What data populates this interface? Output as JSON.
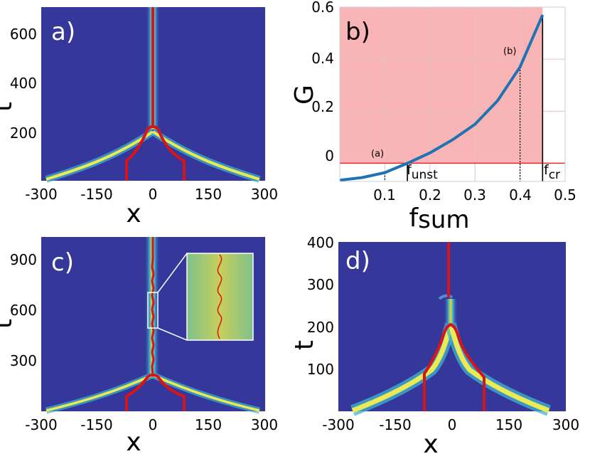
{
  "chart_data": [
    {
      "panel_label": "a)",
      "type": "heatmap",
      "xlabel": "x",
      "ylabel": "t",
      "xticks": [
        "-300",
        "-150",
        "0",
        "150",
        "300"
      ],
      "yticks": [
        "200",
        "400",
        "600"
      ],
      "xlim": [
        -300,
        300
      ],
      "ylim": [
        0,
        700
      ],
      "colors": {
        "background": "#35379a",
        "ridge": "#d7141a",
        "band": "#eaea55"
      }
    },
    {
      "panel_label": "b)",
      "type": "line",
      "xlabel": "f",
      "xlabel_sub": "sum",
      "ylabel": "G",
      "xticks": [
        "0.1",
        "0.2",
        "0.3",
        "0.4",
        "0.5"
      ],
      "yticks": [
        "0",
        "0.2",
        "0.4",
        "0.6"
      ],
      "xlim": [
        0,
        0.5
      ],
      "ylim": [
        -0.07,
        0.6
      ],
      "grid": true,
      "series": [
        {
          "color": "#1f72b4",
          "x": [
            0,
            0.05,
            0.1,
            0.15,
            0.2,
            0.25,
            0.3,
            0.35,
            0.4,
            0.45
          ],
          "values": [
            -0.065,
            -0.055,
            -0.036,
            0.0,
            0.04,
            0.09,
            0.15,
            0.24,
            0.37,
            0.57
          ]
        }
      ],
      "shaded_region": {
        "y_from": 0,
        "color": "#f9b4b6"
      },
      "zero_line_color": "#e8292e",
      "markers": [
        {
          "label": "(a)",
          "x": 0.1,
          "style": "dotted"
        },
        {
          "label": "(b)",
          "x": 0.4,
          "style": "dotted"
        },
        {
          "label": "f",
          "label_sub": "unst",
          "x": 0.15,
          "style": "solid"
        },
        {
          "label": "f",
          "label_sub": "cr",
          "x": 0.45,
          "style": "solid"
        }
      ]
    },
    {
      "panel_label": "c)",
      "type": "heatmap",
      "xlabel": "x",
      "ylabel": "t",
      "xticks": [
        "-300",
        "-150",
        "0",
        "150",
        "300"
      ],
      "yticks": [
        "300",
        "600",
        "900"
      ],
      "xlim": [
        -300,
        300
      ],
      "ylim": [
        0,
        1000
      ],
      "colors": {
        "background": "#35379a",
        "ridge": "#d7141a",
        "band": "#eaea55",
        "inset": "#a7c882"
      }
    },
    {
      "panel_label": "d)",
      "type": "heatmap",
      "xlabel": "x",
      "ylabel": "t",
      "xticks": [
        "-300",
        "-150",
        "0",
        "150",
        "300"
      ],
      "yticks": [
        "100",
        "200",
        "300",
        "400"
      ],
      "xlim": [
        -300,
        300
      ],
      "ylim": [
        0,
        400
      ],
      "colors": {
        "background": "#35379a",
        "ridge": "#d7141a",
        "band": "#eaea55"
      }
    }
  ]
}
